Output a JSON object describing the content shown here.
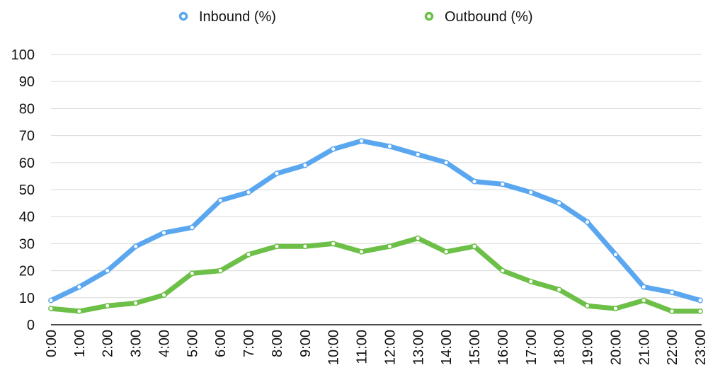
{
  "chart_data": {
    "type": "line",
    "categories": [
      "0:00",
      "1:00",
      "2:00",
      "3:00",
      "4:00",
      "5:00",
      "6:00",
      "7:00",
      "8:00",
      "9:00",
      "10:00",
      "11:00",
      "12:00",
      "13:00",
      "14:00",
      "15:00",
      "16:00",
      "17:00",
      "18:00",
      "19:00",
      "20:00",
      "21:00",
      "22:00",
      "23:00"
    ],
    "series": [
      {
        "name": "Inbound (%)",
        "color": "#5aa7f0",
        "values": [
          9,
          14,
          20,
          29,
          34,
          36,
          46,
          49,
          56,
          59,
          65,
          68,
          66,
          63,
          60,
          53,
          52,
          49,
          45,
          38,
          26,
          14,
          12,
          9
        ]
      },
      {
        "name": "Outbound (%)",
        "color": "#6cbf47",
        "values": [
          6,
          5,
          7,
          8,
          11,
          19,
          20,
          26,
          29,
          29,
          30,
          27,
          29,
          32,
          27,
          29,
          20,
          16,
          13,
          7,
          6,
          9,
          5,
          5
        ]
      }
    ],
    "ylim": [
      0,
      100
    ],
    "yticks": [
      0,
      10,
      20,
      30,
      40,
      50,
      60,
      70,
      80,
      90,
      100
    ],
    "grid": true,
    "legend_position": "top-center"
  }
}
